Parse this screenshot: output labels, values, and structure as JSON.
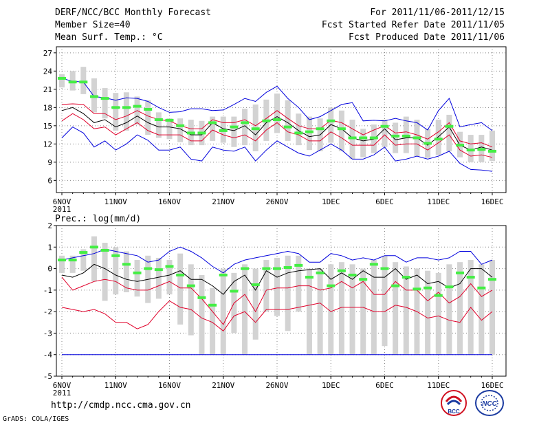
{
  "header": {
    "title": "DERF/NCC/BCC Monthly Forecast",
    "member_size": "Member Size=40",
    "variable": "Mean Surf. Temp.: °C",
    "period": "For 2011/11/06-2011/12/15",
    "refer_date": "Fcst Started Refer Date 2011/11/05",
    "produced_date": "Fcst Produced Date 2011/11/06"
  },
  "footer": {
    "url": "http://cmdp.ncc.cma.gov.cn",
    "grads": "GrADS: COLA/IGES",
    "logo_left": "BCC",
    "logo_right": "NCC"
  },
  "colors": {
    "mean": "#000000",
    "inner": "#e0002a",
    "outer": "#0000dd",
    "box": "#d3d3d3",
    "obs": "#44ee44",
    "grid": "#888888"
  },
  "chart_data": [
    {
      "type": "box-line",
      "title": "Mean Surf. Temp.: °C",
      "x_labels": [
        "6NOV\n2011",
        "11NOV",
        "16NOV",
        "21NOV",
        "26NOV",
        "1DEC",
        "6DEC",
        "11DEC",
        "16DEC"
      ],
      "x_label_days": [
        0,
        5,
        10,
        15,
        20,
        25,
        30,
        35,
        40
      ],
      "ylim": [
        4,
        28
      ],
      "yticks": [
        6,
        9,
        12,
        15,
        18,
        21,
        24,
        27
      ],
      "series": {
        "outer_max": [
          22.8,
          22.3,
          22.2,
          19.8,
          19.6,
          19.2,
          19.6,
          19.5,
          19,
          18,
          17.2,
          17.3,
          17.8,
          17.8,
          17.5,
          17.6,
          18.5,
          19.5,
          19,
          20.5,
          21.5,
          19.5,
          18,
          16,
          16.5,
          17.5,
          18.5,
          18.8,
          15.8,
          15.9,
          15.8,
          16.2,
          15.8,
          15.5,
          14.3,
          17.5,
          19.5,
          14.8,
          15.2,
          15.5,
          14.2
        ],
        "inner_max": [
          18.5,
          18.6,
          18.5,
          17,
          17,
          16,
          16.6,
          17.5,
          16.6,
          16,
          15.8,
          15,
          14.5,
          14.5,
          16,
          15.5,
          15.5,
          16,
          15,
          16.2,
          17.5,
          16.2,
          15,
          14.5,
          14.5,
          15.9,
          15.5,
          14.5,
          13.5,
          14.3,
          15,
          13.8,
          14,
          13.5,
          12.8,
          14,
          15.5,
          12.5,
          12,
          12.2,
          11.5
        ],
        "mean": [
          17.5,
          18,
          17,
          15.5,
          16,
          14.8,
          15.5,
          16.6,
          15.5,
          14.8,
          14.8,
          14.5,
          13.5,
          13.5,
          15.5,
          14.5,
          14.2,
          15,
          13.5,
          15.5,
          16.5,
          15.5,
          14.2,
          13.2,
          13.5,
          15.2,
          14.5,
          13,
          12.5,
          12.8,
          14.5,
          12.7,
          13,
          13,
          11.8,
          13.2,
          14.8,
          11.8,
          11,
          11.5,
          11
        ],
        "inner_min": [
          15.8,
          17,
          16,
          14.5,
          14.8,
          13.5,
          14.5,
          15.5,
          14.2,
          13.5,
          13.5,
          13.5,
          12.5,
          12.5,
          14.3,
          13.5,
          13,
          13.5,
          12.5,
          14.3,
          15.5,
          14,
          13.5,
          12.5,
          12.5,
          14,
          13,
          11.8,
          11.8,
          11.8,
          13.5,
          11.8,
          12,
          12,
          11,
          12.2,
          13.5,
          11,
          10,
          10.2,
          9.8
        ],
        "outer_min": [
          13,
          14.8,
          13.8,
          11.5,
          12.5,
          11,
          12,
          13.5,
          12.6,
          11,
          11,
          11.5,
          9.5,
          9.2,
          11.5,
          11,
          10.8,
          11.5,
          9.2,
          11,
          12.5,
          11.5,
          10.5,
          10,
          11,
          12,
          11,
          9.5,
          9.5,
          10.2,
          11.5,
          9.2,
          9.5,
          10,
          9.5,
          10,
          10.8,
          8.8,
          7.8,
          7.7,
          7.5
        ],
        "observed": [
          22.8,
          22.2,
          22.2,
          19.8,
          19.5,
          18,
          18,
          18.2,
          17.7,
          16,
          15.9,
          15,
          13.8,
          13.8,
          15.5,
          14.2,
          14.8,
          15.5,
          14.5,
          15.8,
          16,
          14.8,
          13.8,
          14,
          14.5,
          15.8,
          14.5,
          13,
          13,
          13,
          14.9,
          13.3,
          13.3,
          13,
          12.1,
          12.8,
          14.9,
          11.8,
          11,
          11.1,
          10.8
        ],
        "box_top": [
          23.5,
          24,
          24.7,
          22.8,
          21.2,
          20.4,
          20.5,
          19.8,
          19.2,
          17.2,
          16.2,
          16.2,
          16,
          15.8,
          16.5,
          16.5,
          16.5,
          17.8,
          18.5,
          19.3,
          20.3,
          19.2,
          17,
          16.5,
          16.2,
          18,
          17.5,
          16,
          14.5,
          15.2,
          16,
          15.5,
          16.5,
          16,
          14.5,
          16,
          16.8,
          14,
          13.5,
          13.5,
          14.2
        ],
        "box_bottom": [
          21.3,
          20.8,
          20.2,
          17.2,
          16.2,
          14.2,
          14.2,
          15.2,
          13.5,
          13,
          12.8,
          12.3,
          11.8,
          11.8,
          12.5,
          12.2,
          11.5,
          11.8,
          10.8,
          12.5,
          13.8,
          12.5,
          11.8,
          11,
          10.8,
          12.2,
          10.8,
          9.5,
          9.8,
          10.5,
          11.5,
          10.5,
          10.5,
          10,
          9.7,
          10.2,
          10.8,
          9.8,
          9,
          9,
          9.2
        ]
      }
    },
    {
      "type": "box-line",
      "title": "Prec.: log(mm/d)",
      "x_labels": [
        "6NOV\n2011",
        "11NOV",
        "16NOV",
        "21NOV",
        "26NOV",
        "1DEC",
        "6DEC",
        "11DEC",
        "16DEC"
      ],
      "x_label_days": [
        0,
        5,
        10,
        15,
        20,
        25,
        30,
        35,
        40
      ],
      "ylim": [
        -5,
        2
      ],
      "yticks": [
        -5,
        -4,
        -3,
        -2,
        -1,
        0,
        1,
        2
      ],
      "series": {
        "outer_max": [
          0.4,
          0.5,
          0.6,
          0.7,
          0.9,
          0.8,
          0.7,
          0.6,
          0.3,
          0.4,
          0.8,
          1.0,
          0.8,
          0.5,
          0.1,
          -0.2,
          0.2,
          0.4,
          0.5,
          0.6,
          0.7,
          0.8,
          0.7,
          0.3,
          0.3,
          0.7,
          0.6,
          0.4,
          0.5,
          0.4,
          0.6,
          0.6,
          0.3,
          0.5,
          0.5,
          0.4,
          0.5,
          0.8,
          0.8,
          0.2,
          0.4
        ],
        "mean": [
          -0.3,
          -0.4,
          -0.2,
          0.2,
          0.0,
          -0.3,
          -0.5,
          -0.6,
          -0.5,
          -0.4,
          -0.3,
          -0.1,
          -0.5,
          -0.5,
          -0.8,
          -1.2,
          -0.6,
          -0.3,
          -1.0,
          -0.1,
          -0.4,
          -0.2,
          -0.1,
          -0.05,
          0.0,
          -0.5,
          -0.2,
          -0.5,
          -0.1,
          -0.4,
          -0.4,
          0.0,
          -0.5,
          -0.3,
          -0.7,
          -0.6,
          -0.9,
          -0.7,
          0.0,
          0.0,
          -0.4
        ],
        "inner_max": [
          -0.4,
          -1.0,
          -0.8,
          -0.6,
          -0.5,
          -0.6,
          -0.9,
          -1.0,
          -1.0,
          -0.8,
          -0.6,
          -0.9,
          -0.9,
          -1.4,
          -2.0,
          -2.6,
          -1.6,
          -1.2,
          -2.0,
          -1.0,
          -0.9,
          -0.9,
          -0.8,
          -0.8,
          -1.0,
          -0.9,
          -0.6,
          -0.9,
          -0.6,
          -1.2,
          -1.2,
          -0.6,
          -1.0,
          -1.0,
          -1.5,
          -1.1,
          -1.6,
          -1.3,
          -0.7,
          -1.3,
          -1.0
        ],
        "inner_min": [
          -1.8,
          -1.9,
          -2.0,
          -1.9,
          -2.1,
          -2.5,
          -2.5,
          -2.8,
          -2.6,
          -2.0,
          -1.5,
          -1.8,
          -1.9,
          -2.3,
          -2.5,
          -2.9,
          -2.2,
          -2.0,
          -2.5,
          -1.9,
          -1.9,
          -1.9,
          -1.8,
          -1.7,
          -1.6,
          -2.0,
          -1.8,
          -1.8,
          -1.8,
          -2.0,
          -2.0,
          -1.7,
          -1.8,
          -2.0,
          -2.3,
          -2.2,
          -2.4,
          -2.5,
          -1.8,
          -2.4,
          -2.0
        ],
        "outer_min": [
          -4,
          -4,
          -4,
          -4,
          -4,
          -4,
          -4,
          -4,
          -4,
          -4,
          -4,
          -4,
          -4,
          -4,
          -4,
          -4,
          -4,
          -4,
          -4,
          -4,
          -4,
          -4,
          -4,
          -4,
          -4,
          -4,
          -4,
          -4,
          -4,
          -4,
          -4,
          -4,
          -4,
          -4,
          -4,
          -4,
          -4,
          -4,
          -4,
          -4,
          -4
        ],
        "observed": [
          0.4,
          0.4,
          0.75,
          1.0,
          0.85,
          0.6,
          0.2,
          -0.2,
          0.0,
          -0.05,
          0.1,
          -0.3,
          -0.8,
          -1.35,
          -1.7,
          -0.3,
          -1.05,
          0.0,
          -0.75,
          0.0,
          0.0,
          0.05,
          0.15,
          -0.4,
          -0.2,
          -0.8,
          -0.1,
          -0.3,
          -0.5,
          0.2,
          0.0,
          -0.8,
          -0.4,
          -0.95,
          -0.9,
          -1.25,
          -0.85,
          -0.2,
          -0.4,
          -0.9,
          -0.5
        ],
        "box_top": [
          0.6,
          0.6,
          0.9,
          1.5,
          1.2,
          1.0,
          0.8,
          0.4,
          0.6,
          0.5,
          0.4,
          0.7,
          0.2,
          -0.3,
          -0.9,
          0.0,
          -0.2,
          0.2,
          0.0,
          0.4,
          0.5,
          0.6,
          0.6,
          0.0,
          0.0,
          0.2,
          0.3,
          0.2,
          0.0,
          0.4,
          0.6,
          0.3,
          0.1,
          0.0,
          -0.1,
          -0.2,
          0.2,
          0.3,
          0.4,
          0.2,
          0.4
        ],
        "box_bottom": [
          -0.2,
          -0.2,
          -0.1,
          -0.6,
          -1.5,
          -1.2,
          -1.1,
          -1.3,
          -1.6,
          -1.4,
          -1.2,
          -2.6,
          -3.1,
          -4,
          -4,
          -4,
          -3.0,
          -4,
          -3.3,
          -2.0,
          -2.2,
          -2.9,
          -2.0,
          -4,
          -4,
          -4,
          -4,
          -4,
          -4,
          -4,
          -3.6,
          -4,
          -4,
          -4,
          -4,
          -4,
          -4,
          -4,
          -4,
          -4,
          -4
        ]
      }
    }
  ]
}
